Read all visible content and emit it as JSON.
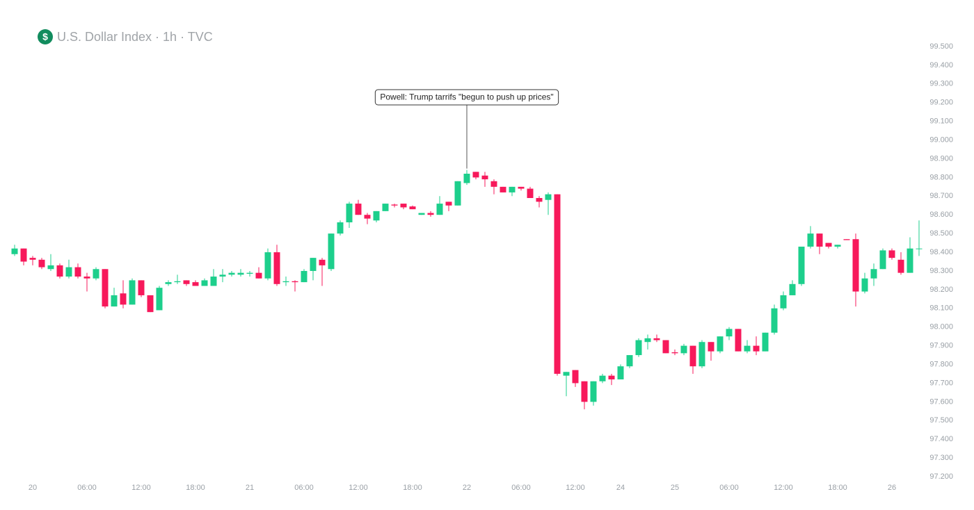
{
  "chart_data": {
    "type": "candlestick",
    "icon": "$",
    "title": "U.S. Dollar Index · 1h · TVC",
    "annotation": {
      "text": "Powell: Trump tarrifs \"begun to push up prices\"",
      "x": 50
    },
    "up_color": "#1dcf8c",
    "down_color": "#f7195b",
    "xlim": [
      0,
      100
    ],
    "xticks": [
      {
        "value": 2,
        "label": "20"
      },
      {
        "value": 8,
        "label": "06:00"
      },
      {
        "value": 14,
        "label": "12:00"
      },
      {
        "value": 20,
        "label": "18:00"
      },
      {
        "value": 26,
        "label": "21"
      },
      {
        "value": 32,
        "label": "06:00"
      },
      {
        "value": 38,
        "label": "12:00"
      },
      {
        "value": 44,
        "label": "18:00"
      },
      {
        "value": 50,
        "label": "22"
      },
      {
        "value": 56,
        "label": "06:00"
      },
      {
        "value": 62,
        "label": "12:00"
      },
      {
        "value": 67,
        "label": "24"
      },
      {
        "value": 73,
        "label": "25"
      },
      {
        "value": 79,
        "label": "06:00"
      },
      {
        "value": 85,
        "label": "12:00"
      },
      {
        "value": 91,
        "label": "18:00"
      },
      {
        "value": 97,
        "label": "26"
      }
    ],
    "ylim": [
      97.2,
      99.5
    ],
    "yticks": [
      {
        "value": 99.5,
        "label": "99.500"
      },
      {
        "value": 99.4,
        "label": "99.400"
      },
      {
        "value": 99.3,
        "label": "99.300"
      },
      {
        "value": 99.2,
        "label": "99.200"
      },
      {
        "value": 99.1,
        "label": "99.100"
      },
      {
        "value": 99.0,
        "label": "99.000"
      },
      {
        "value": 98.9,
        "label": "98.900"
      },
      {
        "value": 98.8,
        "label": "98.800"
      },
      {
        "value": 98.7,
        "label": "98.700"
      },
      {
        "value": 98.6,
        "label": "98.600"
      },
      {
        "value": 98.5,
        "label": "98.500"
      },
      {
        "value": 98.4,
        "label": "98.400"
      },
      {
        "value": 98.3,
        "label": "98.300"
      },
      {
        "value": 98.2,
        "label": "98.200"
      },
      {
        "value": 98.1,
        "label": "98.100"
      },
      {
        "value": 98.0,
        "label": "98.000"
      },
      {
        "value": 97.9,
        "label": "97.900"
      },
      {
        "value": 97.8,
        "label": "97.800"
      },
      {
        "value": 97.7,
        "label": "97.700"
      },
      {
        "value": 97.6,
        "label": "97.600"
      },
      {
        "value": 97.5,
        "label": "97.500"
      },
      {
        "value": 97.4,
        "label": "97.400"
      },
      {
        "value": 97.3,
        "label": "97.300"
      },
      {
        "value": 97.2,
        "label": "97.200"
      }
    ],
    "open": [
      98.39,
      98.42,
      98.37,
      98.36,
      98.31,
      98.33,
      98.27,
      98.32,
      98.27,
      98.26,
      98.31,
      98.11,
      98.18,
      98.12,
      98.25,
      98.17,
      98.09,
      98.23,
      98.24,
      98.25,
      98.24,
      98.22,
      98.22,
      98.27,
      98.28,
      98.28,
      98.285,
      98.29,
      98.26,
      98.4,
      98.24,
      98.245,
      98.24,
      98.3,
      98.36,
      98.31,
      98.5,
      98.56,
      98.66,
      98.6,
      98.57,
      98.62,
      98.655,
      98.66,
      98.645,
      98.6,
      98.61,
      98.6,
      98.67,
      98.65,
      98.77,
      98.83,
      98.81,
      98.78,
      98.75,
      98.72,
      98.75,
      98.74,
      98.69,
      98.68,
      98.71,
      97.74,
      97.77,
      97.71,
      97.6,
      97.71,
      97.74,
      97.72,
      97.79,
      97.85,
      97.92,
      97.94,
      97.93,
      97.865,
      97.86,
      97.9,
      97.79,
      97.92,
      97.87,
      97.95,
      97.99,
      97.87,
      97.9,
      97.87,
      97.97,
      98.1,
      98.17,
      98.23,
      98.43,
      98.5,
      98.45,
      98.43,
      98.47,
      98.47,
      98.19,
      98.26,
      98.31,
      98.41,
      98.36,
      98.29,
      98.42
    ],
    "high": [
      98.44,
      98.42,
      98.38,
      98.37,
      98.39,
      98.34,
      98.36,
      98.34,
      98.29,
      98.32,
      98.31,
      98.21,
      98.25,
      98.26,
      98.25,
      98.17,
      98.22,
      98.25,
      98.28,
      98.25,
      98.25,
      98.26,
      98.31,
      98.31,
      98.3,
      98.31,
      98.3,
      98.32,
      98.42,
      98.44,
      98.27,
      98.25,
      98.31,
      98.37,
      98.37,
      98.5,
      98.57,
      98.67,
      98.68,
      98.61,
      98.62,
      98.66,
      98.66,
      98.66,
      98.65,
      98.61,
      98.62,
      98.7,
      98.67,
      98.78,
      98.84,
      98.83,
      98.83,
      98.79,
      98.75,
      98.75,
      98.75,
      98.75,
      98.7,
      98.72,
      98.71,
      97.76,
      97.77,
      97.71,
      97.71,
      97.75,
      97.75,
      97.8,
      97.85,
      97.94,
      97.96,
      97.96,
      97.93,
      97.88,
      97.91,
      97.9,
      97.93,
      97.92,
      97.95,
      98.0,
      97.99,
      97.93,
      97.95,
      97.97,
      98.12,
      98.19,
      98.25,
      98.43,
      98.54,
      98.5,
      98.45,
      98.44,
      98.47,
      98.5,
      98.29,
      98.34,
      98.42,
      98.42,
      98.4,
      98.48,
      98.57
    ],
    "low": [
      98.38,
      98.33,
      98.33,
      98.31,
      98.3,
      98.26,
      98.26,
      98.26,
      98.19,
      98.25,
      98.1,
      98.11,
      98.1,
      98.12,
      98.16,
      98.08,
      98.09,
      98.22,
      98.23,
      98.22,
      98.22,
      98.22,
      98.22,
      98.24,
      98.27,
      98.27,
      98.27,
      98.26,
      98.25,
      98.22,
      98.22,
      98.19,
      98.24,
      98.25,
      98.22,
      98.3,
      98.49,
      98.53,
      98.6,
      98.55,
      98.56,
      98.62,
      98.64,
      98.63,
      98.63,
      98.6,
      98.59,
      98.6,
      98.62,
      98.65,
      98.76,
      98.79,
      98.75,
      98.71,
      98.72,
      98.7,
      98.73,
      98.69,
      98.64,
      98.6,
      97.74,
      97.63,
      97.68,
      97.56,
      97.58,
      97.7,
      97.69,
      97.72,
      97.78,
      97.84,
      97.88,
      97.92,
      97.86,
      97.85,
      97.85,
      97.75,
      97.78,
      97.82,
      97.86,
      97.93,
      97.87,
      97.86,
      97.85,
      97.87,
      97.96,
      98.09,
      98.17,
      98.22,
      98.42,
      98.39,
      98.42,
      98.42,
      98.465,
      98.11,
      98.18,
      98.22,
      98.31,
      98.36,
      98.28,
      98.29,
      98.38
    ],
    "close": [
      98.42,
      98.35,
      98.36,
      98.32,
      98.33,
      98.27,
      98.32,
      98.27,
      98.26,
      98.31,
      98.11,
      98.17,
      98.12,
      98.25,
      98.17,
      98.08,
      98.21,
      98.24,
      98.245,
      98.23,
      98.22,
      98.25,
      98.27,
      98.28,
      98.29,
      98.29,
      98.29,
      98.26,
      98.4,
      98.23,
      98.245,
      98.24,
      98.3,
      98.37,
      98.33,
      98.5,
      98.56,
      98.66,
      98.6,
      98.58,
      98.62,
      98.66,
      98.65,
      98.64,
      98.63,
      98.61,
      98.6,
      98.66,
      98.65,
      98.78,
      98.82,
      98.8,
      98.79,
      98.75,
      98.72,
      98.75,
      98.74,
      98.69,
      98.67,
      98.71,
      97.75,
      97.76,
      97.7,
      97.6,
      97.71,
      97.74,
      97.72,
      97.79,
      97.85,
      97.93,
      97.94,
      97.93,
      97.86,
      97.86,
      97.9,
      97.79,
      97.92,
      97.87,
      97.95,
      97.99,
      97.87,
      97.9,
      97.87,
      97.97,
      98.1,
      98.17,
      98.23,
      98.43,
      98.5,
      98.43,
      98.43,
      98.44,
      98.465,
      98.19,
      98.26,
      98.31,
      98.41,
      98.37,
      98.29,
      98.42,
      98.42
    ]
  }
}
